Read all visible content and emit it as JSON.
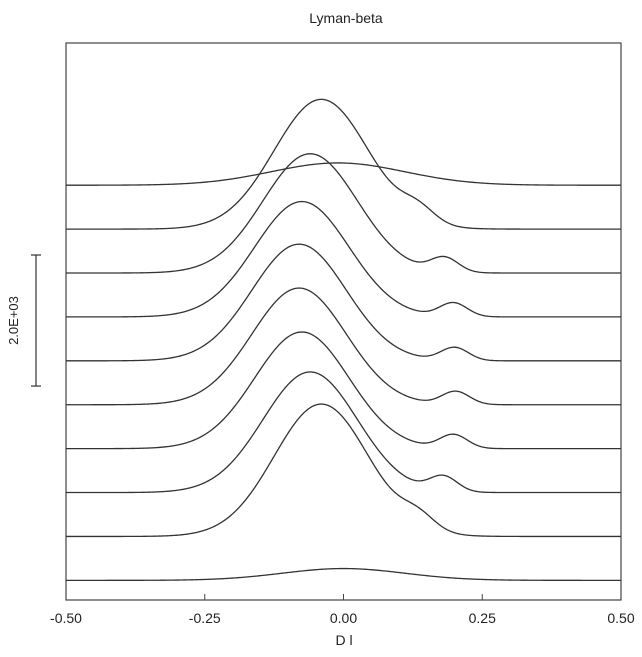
{
  "chart_data": {
    "type": "line",
    "title": "Lyman-beta",
    "xlabel": "D l",
    "ylabel": "",
    "xlim": [
      -0.5,
      0.5
    ],
    "x_ticks": [
      -0.5,
      -0.25,
      0.0,
      0.25,
      0.5
    ],
    "x_tick_labels": [
      "-0.50",
      "-0.25",
      "0.00",
      "0.25",
      "0.50"
    ],
    "grid": false,
    "legend": "none",
    "scale_bar": {
      "label": "2.0E+03",
      "value": 2000
    },
    "profile_offset_step": 670,
    "series": [
      {
        "baseline": 0,
        "components": [
          {
            "center": 0.0,
            "amp": 180,
            "width": 0.11
          }
        ]
      },
      {
        "baseline": 670,
        "components": [
          {
            "center": -0.04,
            "amp": 2020,
            "width": 0.085
          },
          {
            "center": 0.135,
            "amp": 200,
            "width": 0.03
          }
        ]
      },
      {
        "baseline": 1340,
        "components": [
          {
            "center": -0.06,
            "amp": 1840,
            "width": 0.085
          },
          {
            "center": 0.18,
            "amp": 230,
            "width": 0.025
          }
        ]
      },
      {
        "baseline": 2010,
        "components": [
          {
            "center": -0.075,
            "amp": 1780,
            "width": 0.085
          },
          {
            "center": 0.198,
            "amp": 210,
            "width": 0.025
          }
        ]
      },
      {
        "baseline": 2680,
        "components": [
          {
            "center": -0.08,
            "amp": 1780,
            "width": 0.085
          },
          {
            "center": 0.202,
            "amp": 200,
            "width": 0.025
          }
        ]
      },
      {
        "baseline": 3350,
        "components": [
          {
            "center": -0.08,
            "amp": 1780,
            "width": 0.085
          },
          {
            "center": 0.2,
            "amp": 200,
            "width": 0.025
          }
        ]
      },
      {
        "baseline": 4020,
        "components": [
          {
            "center": -0.075,
            "amp": 1760,
            "width": 0.085
          },
          {
            "center": 0.198,
            "amp": 210,
            "width": 0.025
          }
        ]
      },
      {
        "baseline": 4690,
        "components": [
          {
            "center": -0.06,
            "amp": 1820,
            "width": 0.085
          },
          {
            "center": 0.182,
            "amp": 220,
            "width": 0.025
          }
        ]
      },
      {
        "baseline": 5360,
        "components": [
          {
            "center": -0.04,
            "amp": 1980,
            "width": 0.085
          },
          {
            "center": 0.135,
            "amp": 200,
            "width": 0.03
          }
        ]
      },
      {
        "baseline": 6030,
        "components": [
          {
            "center": -0.01,
            "amp": 340,
            "width": 0.12
          }
        ]
      }
    ]
  }
}
